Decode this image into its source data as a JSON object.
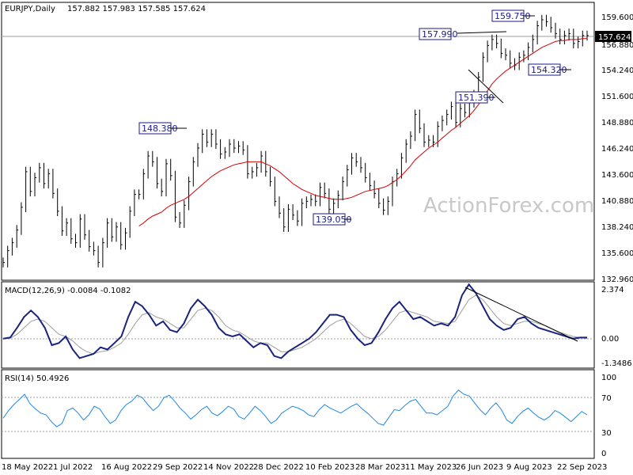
{
  "watermark": "ActionForex.com",
  "chart_data": [
    {
      "type": "candlestick",
      "title": "EURJPY,Daily",
      "ohlc_text": "157.882 157.983 157.585 157.624",
      "ohlc": {
        "open": 157.882,
        "high": 157.983,
        "low": 157.585,
        "close": 157.624
      },
      "ylim": [
        132.96,
        159.6
      ],
      "y_ticks": [
        "159.600",
        "156.880",
        "154.240",
        "151.600",
        "148.880",
        "146.240",
        "143.600",
        "140.880",
        "138.240",
        "135.600",
        "132.960"
      ],
      "x_ticks": [
        "18 May 2022",
        "1 Jul 2022",
        "16 Aug 2022",
        "29 Sep 2022",
        "14 Nov 2022",
        "28 Dec 2022",
        "10 Feb 2023",
        "28 Mar 2023",
        "11 May 2023",
        "26 Jun 2023",
        "9 Aug 2023",
        "22 Sep 2023"
      ],
      "current_price": "157.624",
      "annotations": [
        "148.380",
        "139.050",
        "157.990",
        "151.390",
        "159.750",
        "154.320"
      ],
      "series": [
        {
          "type": "price",
          "color": "#000000",
          "values": [
            134.6,
            135.8,
            136.6,
            137.9,
            140.2,
            143.8,
            141.8,
            143.2,
            144.2,
            142.6,
            143.6,
            141.6,
            139.8,
            137.8,
            138.6,
            137.0,
            136.6,
            139.0,
            137.4,
            136.2,
            135.8,
            134.6,
            136.6,
            138.6,
            137.2,
            138.2,
            136.4,
            137.6,
            139.8,
            141.5,
            141.5,
            143.6,
            145.4,
            144.8,
            142.6,
            141.8,
            144.6,
            143.4,
            139.2,
            138.6,
            140.4,
            142.8,
            144.8,
            146.2,
            147.6,
            146.8,
            147.6,
            146.6,
            145.6,
            145.8,
            146.6,
            146.2,
            146.4,
            146.0,
            143.6,
            143.8,
            144.2,
            145.4,
            143.8,
            142.8,
            140.8,
            139.6,
            138.2,
            140.0,
            139.4,
            138.8,
            140.6,
            140.8,
            141.0,
            140.8,
            142.2,
            141.6,
            140.0,
            140.6,
            141.4,
            142.8,
            144.0,
            145.2,
            144.8,
            144.2,
            143.2,
            142.4,
            141.6,
            140.6,
            139.9,
            140.8,
            142.8,
            143.6,
            145.2,
            146.6,
            147.4,
            149.6,
            148.2,
            146.8,
            147.0,
            146.8,
            148.4,
            149.0,
            149.6,
            150.4,
            148.8,
            150.2,
            149.8,
            150.8,
            151.6,
            153.4,
            155.4,
            156.6,
            157.2,
            156.8,
            155.8,
            155.6,
            154.8,
            154.6,
            155.4,
            155.6,
            156.4,
            157.2,
            158.6,
            159.2,
            159.0,
            158.4,
            157.8,
            157.2,
            157.6,
            157.8,
            156.8,
            157.0,
            157.6,
            157.6
          ]
        },
        {
          "type": "ma",
          "color": "#d40000",
          "values": [
            null,
            null,
            null,
            null,
            null,
            null,
            null,
            null,
            null,
            null,
            null,
            null,
            null,
            null,
            null,
            null,
            null,
            null,
            null,
            null,
            null,
            null,
            null,
            null,
            null,
            null,
            null,
            null,
            null,
            null,
            138.3,
            138.6,
            139.0,
            139.3,
            139.5,
            139.7,
            140.1,
            140.4,
            140.6,
            140.8,
            141.0,
            141.3,
            141.7,
            142.1,
            142.5,
            142.9,
            143.3,
            143.6,
            143.9,
            144.1,
            144.3,
            144.5,
            144.6,
            144.7,
            144.8,
            144.8,
            144.8,
            144.8,
            144.6,
            144.4,
            144.1,
            143.8,
            143.4,
            143.0,
            142.6,
            142.3,
            142.0,
            141.8,
            141.6,
            141.4,
            141.3,
            141.2,
            141.1,
            141.0,
            141.0,
            141.0,
            141.1,
            141.2,
            141.4,
            141.6,
            141.8,
            141.9,
            142.0,
            142.1,
            142.2,
            142.4,
            142.7,
            143.0,
            143.4,
            143.9,
            144.4,
            145.0,
            145.4,
            145.8,
            146.2,
            146.5,
            146.8,
            147.2,
            147.6,
            148.0,
            148.3,
            148.7,
            149.1,
            149.5,
            150.0,
            150.6,
            151.3,
            152.0,
            152.7,
            153.2,
            153.6,
            154.0,
            154.3,
            154.6,
            154.9,
            155.2,
            155.5,
            155.8,
            156.1,
            156.4,
            156.6,
            156.8,
            157.0,
            157.1,
            157.1,
            157.2,
            157.2,
            157.2,
            157.3,
            157.3
          ]
        }
      ]
    },
    {
      "type": "line",
      "title": "MACD(12,26,9) -0.0084 -0.1082",
      "ylim": [
        -1.3486,
        2.374
      ],
      "y_ticks": [
        "2.374",
        "0.00",
        "-1.3486"
      ],
      "trendline": true,
      "series": [
        {
          "name": "MACD",
          "color": "#1a237e",
          "values": [
            -0.1,
            -0.05,
            0.4,
            0.9,
            1.2,
            0.9,
            0.4,
            -0.4,
            -0.3,
            0.0,
            -0.6,
            -1.0,
            -0.9,
            -0.8,
            -0.5,
            -0.6,
            -0.3,
            0.0,
            0.9,
            1.6,
            1.4,
            1.0,
            0.5,
            0.7,
            0.3,
            0.2,
            0.6,
            1.3,
            1.7,
            1.4,
            1.0,
            0.4,
            0.1,
            0.0,
            0.1,
            -0.2,
            -0.5,
            -0.3,
            -0.4,
            -0.9,
            -1.0,
            -0.7,
            -0.5,
            -0.3,
            -0.1,
            0.2,
            0.6,
            1.0,
            1.0,
            0.9,
            0.3,
            -0.1,
            -0.4,
            -0.3,
            0.2,
            0.8,
            1.3,
            1.6,
            1.2,
            0.8,
            0.9,
            0.7,
            0.5,
            0.6,
            0.5,
            0.9,
            1.9,
            2.4,
            2.0,
            1.4,
            0.8,
            0.5,
            0.3,
            0.4,
            0.8,
            0.9,
            0.6,
            0.4,
            0.3,
            0.2,
            0.1,
            0.0,
            -0.1,
            -0.05,
            -0.05
          ]
        },
        {
          "name": "Signal",
          "color": "#9e9e9e",
          "values": [
            -0.1,
            -0.08,
            0.1,
            0.4,
            0.7,
            0.8,
            0.7,
            0.4,
            0.1,
            0.0,
            -0.2,
            -0.5,
            -0.7,
            -0.8,
            -0.7,
            -0.65,
            -0.5,
            -0.3,
            0.1,
            0.6,
            1.0,
            1.1,
            0.9,
            0.8,
            0.6,
            0.4,
            0.4,
            0.8,
            1.2,
            1.3,
            1.2,
            0.9,
            0.5,
            0.3,
            0.2,
            0.0,
            -0.2,
            -0.3,
            -0.3,
            -0.5,
            -0.7,
            -0.7,
            -0.6,
            -0.5,
            -0.3,
            -0.1,
            0.2,
            0.5,
            0.7,
            0.8,
            0.6,
            0.3,
            0.0,
            -0.1,
            0.0,
            0.3,
            0.7,
            1.1,
            1.2,
            1.1,
            1.0,
            0.9,
            0.7,
            0.65,
            0.6,
            0.7,
            1.2,
            1.7,
            1.9,
            1.7,
            1.3,
            0.9,
            0.6,
            0.5,
            0.6,
            0.7,
            0.7,
            0.6,
            0.5,
            0.35,
            0.2,
            0.1,
            0.0,
            -0.05,
            -0.1
          ]
        }
      ]
    },
    {
      "type": "line",
      "title": "RSI(14) 50.4926",
      "ylim": [
        0,
        100
      ],
      "y_ticks": [
        "100",
        "70",
        "30",
        "0"
      ],
      "series": [
        {
          "name": "RSI",
          "color": "#1e88e5",
          "values": [
            46,
            55,
            62,
            68,
            74,
            63,
            57,
            52,
            50,
            42,
            36,
            40,
            55,
            58,
            52,
            44,
            50,
            60,
            57,
            48,
            40,
            44,
            55,
            62,
            66,
            73,
            70,
            62,
            55,
            60,
            70,
            73,
            66,
            58,
            52,
            45,
            50,
            56,
            60,
            52,
            49,
            54,
            60,
            57,
            48,
            45,
            52,
            60,
            55,
            48,
            40,
            44,
            52,
            56,
            60,
            58,
            55,
            50,
            48,
            56,
            62,
            58,
            55,
            52,
            56,
            60,
            63,
            57,
            52,
            46,
            40,
            38,
            47,
            56,
            55,
            61,
            66,
            68,
            60,
            52,
            52,
            50,
            55,
            60,
            72,
            79,
            74,
            72,
            64,
            56,
            50,
            58,
            64,
            56,
            44,
            40,
            48,
            54,
            58,
            52,
            47,
            44,
            48,
            55,
            52,
            47,
            42,
            48,
            54,
            50
          ]
        }
      ]
    }
  ]
}
